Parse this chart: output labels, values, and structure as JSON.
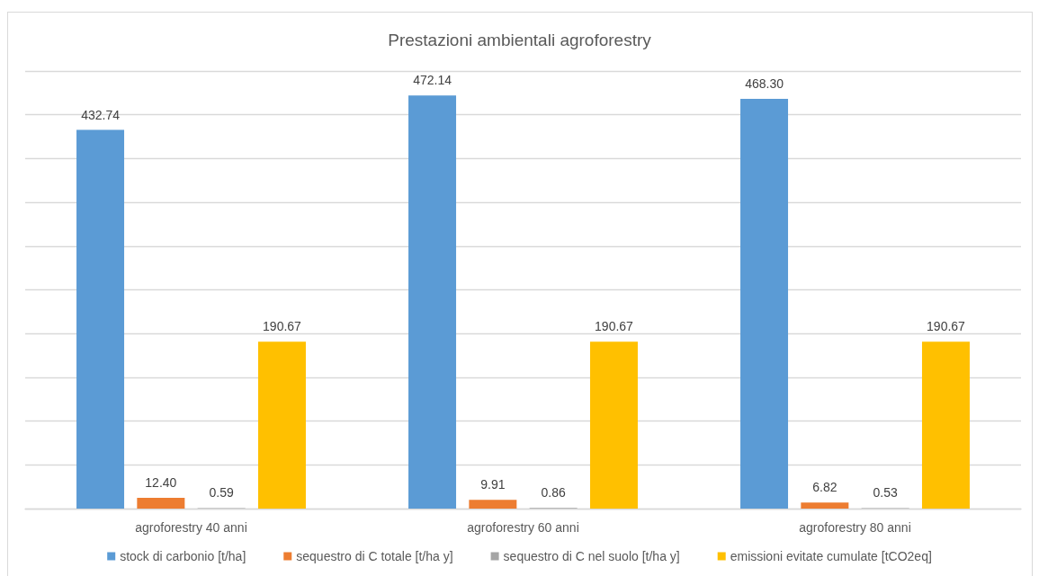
{
  "chart_data": {
    "type": "bar",
    "title": "Prestazioni ambientali agroforestry",
    "categories": [
      "agroforestry 40 anni",
      "agroforestry 60 anni",
      "agroforestry 80 anni"
    ],
    "series": [
      {
        "name": "stock di carbonio [t/ha]",
        "color": "#5b9bd5",
        "values": [
          432.74,
          472.14,
          468.3
        ],
        "value_labels": [
          "432.74",
          "472.14",
          "468.30"
        ]
      },
      {
        "name": "sequestro di C totale [t/ha y]",
        "color": "#ed7d31",
        "values": [
          12.4,
          9.91,
          6.82
        ],
        "value_labels": [
          "12.40",
          "9.91",
          "6.82"
        ]
      },
      {
        "name": "sequestro di C nel suolo [t/ha y]",
        "color": "#a5a5a5",
        "values": [
          0.59,
          0.86,
          0.53
        ],
        "value_labels": [
          "0.59",
          "0.86",
          "0.53"
        ]
      },
      {
        "name": "emissioni evitate cumulate [tCO2eq]",
        "color": "#ffc000",
        "values": [
          190.67,
          190.67,
          190.67
        ],
        "value_labels": [
          "190.67",
          "190.67",
          "190.67"
        ]
      }
    ],
    "ylim": [
      0,
      500
    ],
    "yticks": [
      {
        "value": 0,
        "label": null
      },
      {
        "value": 50,
        "label": null
      },
      {
        "value": 100,
        "label": null
      },
      {
        "value": 150,
        "label": null
      },
      {
        "value": 200,
        "label": null
      },
      {
        "value": 250,
        "label": null
      },
      {
        "value": 300,
        "label": null
      },
      {
        "value": 350,
        "label": null
      },
      {
        "value": 400,
        "label": null
      },
      {
        "value": 450,
        "label": null
      },
      {
        "value": 500,
        "label": null
      }
    ],
    "grid": "y",
    "legend": "bottom",
    "tick_labels": "x"
  }
}
